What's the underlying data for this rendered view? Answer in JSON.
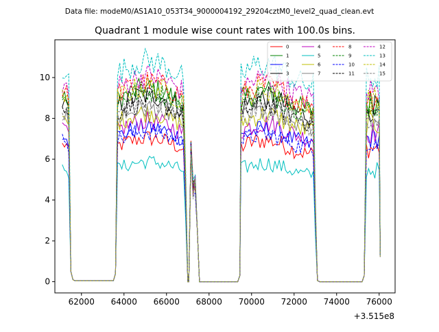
{
  "suptitle": "Data file: modeM0/AS1A10_053T34_9000004192_29204cztM0_level2_quad_clean.evt",
  "chart_data": {
    "type": "line",
    "title": "Quadrant 1 module wise count rates with 100.0s bins.",
    "xlabel": "",
    "ylabel": "",
    "x_offset_label": "+3.515e8",
    "xlim": [
      60750,
      76750
    ],
    "ylim": [
      -0.55,
      11.85
    ],
    "x_ticks": [
      62000,
      64000,
      66000,
      68000,
      70000,
      72000,
      74000,
      76000
    ],
    "x_tick_labels": [
      "62000",
      "64000",
      "66000",
      "68000",
      "70000",
      "72000",
      "74000",
      "76000"
    ],
    "y_ticks": [
      0,
      2,
      4,
      6,
      8,
      10
    ],
    "y_tick_labels": [
      "0",
      "2",
      "4",
      "6",
      "8",
      "10"
    ],
    "legend_position": "top-right",
    "segments": [
      {
        "start": 61100,
        "end": 61400
      },
      {
        "start": 63700,
        "end": 66800
      },
      {
        "start": 67100,
        "end": 67150
      },
      {
        "start": 69500,
        "end": 72900
      },
      {
        "start": 75400,
        "end": 76000
      }
    ],
    "segment_ends": [
      {
        "x": 61600,
        "y": 0.1
      },
      {
        "x": 66800,
        "y": 6.3
      },
      {
        "x": 67050,
        "y": 0
      },
      {
        "x": 67450,
        "y": 2.5
      },
      {
        "x": 76050,
        "y": 1.5
      }
    ],
    "series": [
      {
        "name": "0",
        "color": "#ff0000",
        "dashed": false,
        "level": 6.7
      },
      {
        "name": "1",
        "color": "#008000",
        "dashed": false,
        "level": 9.0
      },
      {
        "name": "2",
        "color": "#0000ff",
        "dashed": false,
        "level": 7.2
      },
      {
        "name": "3",
        "color": "#000000",
        "dashed": false,
        "level": 8.7
      },
      {
        "name": "4",
        "color": "#bf00bf",
        "dashed": false,
        "level": 7.5
      },
      {
        "name": "5",
        "color": "#00bfbf",
        "dashed": false,
        "level": 5.6
      },
      {
        "name": "6",
        "color": "#bfbf00",
        "dashed": false,
        "level": 7.9
      },
      {
        "name": "7",
        "color": "#808080",
        "dashed": false,
        "level": 8.1
      },
      {
        "name": "8",
        "color": "#ff0000",
        "dashed": true,
        "level": 9.3
      },
      {
        "name": "9",
        "color": "#008000",
        "dashed": true,
        "level": 8.9
      },
      {
        "name": "10",
        "color": "#0000ff",
        "dashed": true,
        "level": 7.0
      },
      {
        "name": "11",
        "color": "#000000",
        "dashed": true,
        "level": 8.4
      },
      {
        "name": "12",
        "color": "#bf00bf",
        "dashed": true,
        "level": 9.6
      },
      {
        "name": "13",
        "color": "#00bfbf",
        "dashed": true,
        "level": 10.3
      },
      {
        "name": "14",
        "color": "#bfbf00",
        "dashed": true,
        "level": 9.1
      },
      {
        "name": "15",
        "color": "#808080",
        "dashed": true,
        "level": 8.2
      }
    ]
  }
}
